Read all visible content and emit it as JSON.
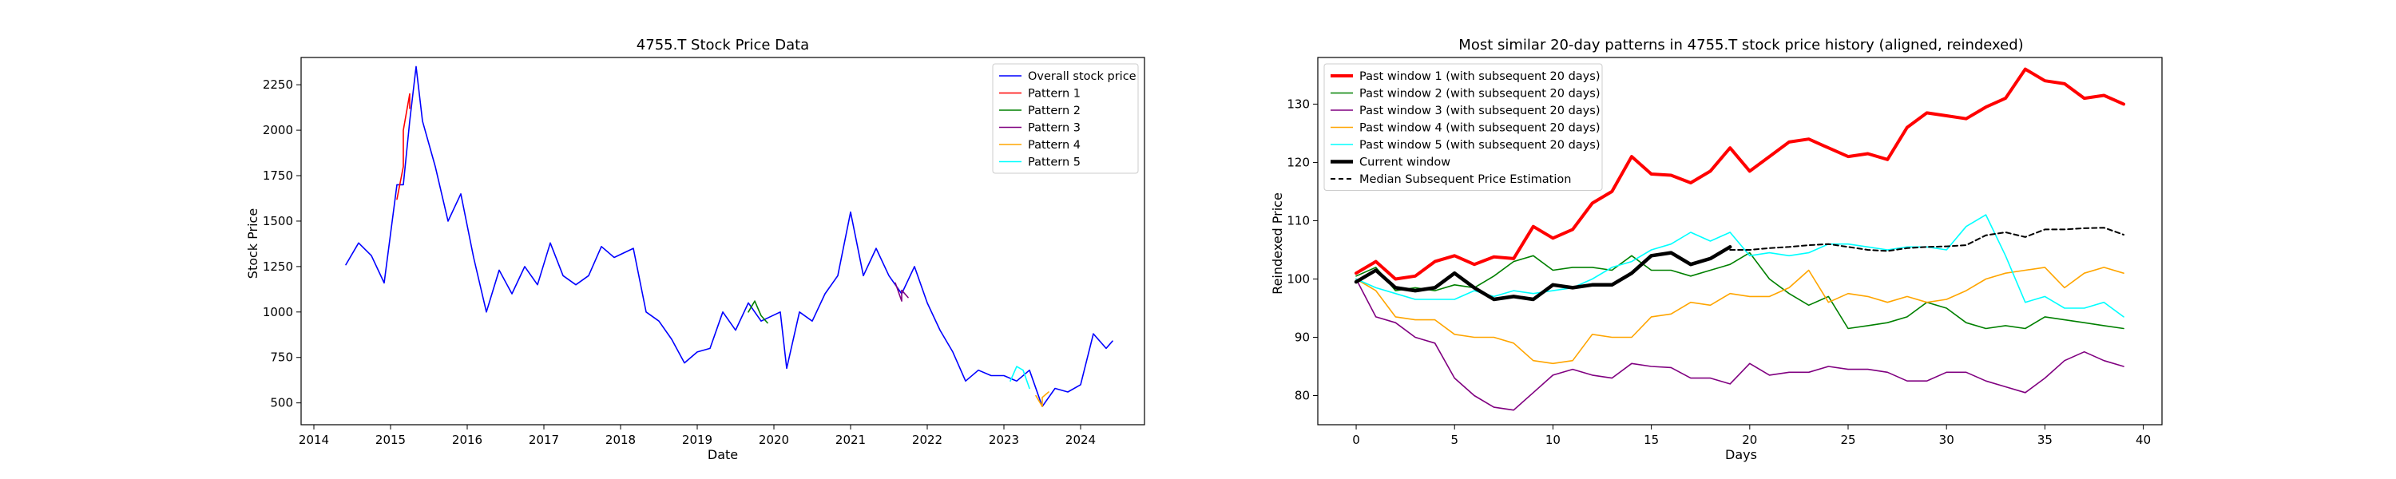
{
  "chart_data": [
    {
      "type": "line",
      "title": "4755.T Stock Price Data",
      "xlabel": "Date",
      "ylabel": "Stock Price",
      "x_ticks": [
        "2014",
        "2015",
        "2016",
        "2017",
        "2018",
        "2019",
        "2020",
        "2021",
        "2022",
        "2023",
        "2024"
      ],
      "y_ticks": [
        "500",
        "750",
        "1000",
        "1250",
        "1500",
        "1750",
        "2000",
        "2250"
      ],
      "xlim": [
        "2013-11",
        "2024-11"
      ],
      "ylim": [
        380,
        2400
      ],
      "grid": false,
      "legend_position": "top-right",
      "series": [
        {
          "name": "Overall stock price",
          "color": "#0000ff",
          "points": [
            [
              "2014-06",
              1260
            ],
            [
              "2014-08",
              1380
            ],
            [
              "2014-10",
              1310
            ],
            [
              "2014-12",
              1160
            ],
            [
              "2015-02",
              1700
            ],
            [
              "2015-03",
              1700
            ],
            [
              "2015-04",
              2050
            ],
            [
              "2015-05",
              2350
            ],
            [
              "2015-06",
              2050
            ],
            [
              "2015-08",
              1800
            ],
            [
              "2015-10",
              1500
            ],
            [
              "2015-12",
              1650
            ],
            [
              "2016-02",
              1300
            ],
            [
              "2016-04",
              1000
            ],
            [
              "2016-06",
              1230
            ],
            [
              "2016-08",
              1100
            ],
            [
              "2016-10",
              1250
            ],
            [
              "2016-12",
              1150
            ],
            [
              "2017-02",
              1380
            ],
            [
              "2017-04",
              1200
            ],
            [
              "2017-06",
              1150
            ],
            [
              "2017-08",
              1200
            ],
            [
              "2017-10",
              1360
            ],
            [
              "2017-12",
              1300
            ],
            [
              "2018-03",
              1350
            ],
            [
              "2018-05",
              1000
            ],
            [
              "2018-07",
              950
            ],
            [
              "2018-09",
              850
            ],
            [
              "2018-11",
              720
            ],
            [
              "2019-01",
              780
            ],
            [
              "2019-03",
              800
            ],
            [
              "2019-05",
              1000
            ],
            [
              "2019-07",
              900
            ],
            [
              "2019-09",
              1050
            ],
            [
              "2019-11",
              950
            ],
            [
              "2020-02",
              1000
            ],
            [
              "2020-03",
              690
            ],
            [
              "2020-05",
              1000
            ],
            [
              "2020-07",
              950
            ],
            [
              "2020-09",
              1100
            ],
            [
              "2020-11",
              1200
            ],
            [
              "2021-01",
              1550
            ],
            [
              "2021-03",
              1200
            ],
            [
              "2021-05",
              1350
            ],
            [
              "2021-07",
              1200
            ],
            [
              "2021-09",
              1100
            ],
            [
              "2021-11",
              1250
            ],
            [
              "2022-01",
              1050
            ],
            [
              "2022-03",
              900
            ],
            [
              "2022-05",
              780
            ],
            [
              "2022-07",
              620
            ],
            [
              "2022-09",
              680
            ],
            [
              "2022-11",
              650
            ],
            [
              "2023-01",
              650
            ],
            [
              "2023-03",
              620
            ],
            [
              "2023-05",
              680
            ],
            [
              "2023-07",
              480
            ],
            [
              "2023-09",
              580
            ],
            [
              "2023-11",
              560
            ],
            [
              "2024-01",
              600
            ],
            [
              "2024-03",
              880
            ],
            [
              "2024-05",
              800
            ],
            [
              "2024-06",
              840
            ]
          ]
        },
        {
          "name": "Pattern 1",
          "color": "#ff0000",
          "points": [
            [
              "2015-02",
              1620
            ],
            [
              "2015-03",
              1800
            ],
            [
              "2015-03",
              2000
            ],
            [
              "2015-04",
              2200
            ],
            [
              "2015-04",
              2120
            ]
          ]
        },
        {
          "name": "Pattern 2",
          "color": "#008000",
          "points": [
            [
              "2019-09",
              1000
            ],
            [
              "2019-10",
              1060
            ],
            [
              "2019-11",
              980
            ],
            [
              "2019-12",
              940
            ]
          ]
        },
        {
          "name": "Pattern 3",
          "color": "#800080",
          "points": [
            [
              "2021-08",
              1160
            ],
            [
              "2021-09",
              1060
            ],
            [
              "2021-09",
              1120
            ],
            [
              "2021-10",
              1080
            ]
          ]
        },
        {
          "name": "Pattern 4",
          "color": "#ffa500",
          "points": [
            [
              "2023-06",
              540
            ],
            [
              "2023-07",
              480
            ],
            [
              "2023-07",
              530
            ],
            [
              "2023-08",
              560
            ]
          ]
        },
        {
          "name": "Pattern 5",
          "color": "#00ffff",
          "points": [
            [
              "2023-02",
              620
            ],
            [
              "2023-03",
              700
            ],
            [
              "2023-04",
              680
            ],
            [
              "2023-05",
              580
            ]
          ]
        }
      ]
    },
    {
      "type": "line",
      "title": "Most similar 20-day patterns in 4755.T stock price history (aligned, reindexed)",
      "xlabel": "Days",
      "ylabel": "Reindexed Price",
      "x_ticks": [
        "0",
        "5",
        "10",
        "15",
        "20",
        "25",
        "30",
        "35",
        "40"
      ],
      "y_ticks": [
        "80",
        "90",
        "100",
        "110",
        "120",
        "130"
      ],
      "xlim": [
        -1.95,
        40.95
      ],
      "ylim": [
        75,
        138
      ],
      "grid": false,
      "legend_position": "top-left",
      "series": [
        {
          "name": "Past window 1 (with subsequent 20 days)",
          "color": "#ff0000",
          "values": [
            101,
            103,
            100,
            100.5,
            103,
            104,
            102.5,
            103.8,
            103.5,
            109,
            107,
            108.5,
            113,
            115,
            121,
            118,
            117.8,
            116.5,
            118.5,
            122.5,
            118.5,
            121,
            123.5,
            124,
            122.5,
            121,
            121.5,
            120.5,
            126,
            128.5,
            128,
            127.5,
            129.5,
            131,
            136,
            134,
            133.5,
            131,
            131.5,
            130
          ]
        },
        {
          "name": "Past window 2 (with subsequent 20 days)",
          "color": "#008000",
          "values": [
            100.5,
            102,
            98,
            98.5,
            98,
            99,
            98.5,
            100.5,
            103,
            104,
            101.5,
            102,
            102,
            101.5,
            104,
            101.5,
            101.5,
            100.5,
            101.5,
            102.5,
            104.5,
            100,
            97.5,
            95.5,
            97,
            91.5,
            92,
            92.5,
            93.5,
            96,
            95,
            92.5,
            91.5,
            92,
            91.5,
            93.5,
            93,
            92.5,
            92,
            91.5
          ]
        },
        {
          "name": "Past window 3 (with subsequent 20 days)",
          "color": "#800080",
          "values": [
            100,
            93.5,
            92.5,
            90,
            89,
            83,
            80,
            78,
            77.5,
            80.5,
            83.5,
            84.5,
            83.5,
            83,
            85.5,
            85,
            84.8,
            83,
            83,
            82,
            85.5,
            83.5,
            84,
            84,
            85,
            84.5,
            84.5,
            84,
            82.5,
            82.5,
            84,
            84,
            82.5,
            81.5,
            80.5,
            83,
            86,
            87.5,
            86,
            85
          ]
        },
        {
          "name": "Past window 4 (with subsequent 20 days)",
          "color": "#ffa500",
          "values": [
            100,
            98,
            93.5,
            93,
            93,
            90.5,
            90,
            90,
            89,
            86,
            85.5,
            86,
            90.5,
            90,
            90,
            93.5,
            94,
            96,
            95.5,
            97.5,
            97,
            97,
            98.5,
            101.5,
            96,
            97.5,
            97,
            96,
            97,
            96,
            96.5,
            98,
            100,
            101,
            101.5,
            102,
            98.5,
            101,
            102,
            101
          ]
        },
        {
          "name": "Past window 5 (with subsequent 20 days)",
          "color": "#00ffff",
          "values": [
            100,
            98.5,
            97.5,
            96.5,
            96.5,
            96.5,
            98,
            97,
            98,
            97.5,
            98,
            98.5,
            100,
            102,
            103,
            105,
            106,
            108,
            106.5,
            108,
            104,
            104.5,
            104,
            104.5,
            106,
            106,
            105.5,
            105,
            105.5,
            105.5,
            105,
            109,
            111,
            104,
            96,
            97,
            95,
            95,
            96,
            93.5
          ]
        },
        {
          "name": "Current window",
          "color": "#000000",
          "values": [
            99.5,
            101.5,
            98.5,
            98,
            98.5,
            101,
            98.5,
            96.5,
            97,
            96.5,
            99,
            98.5,
            99,
            99,
            101,
            104,
            104.5,
            102.5,
            103.5,
            105.5
          ]
        },
        {
          "name": "Median Subsequent Price Estimation",
          "color": "#000000",
          "dashed": true,
          "x": [
            19,
            20,
            21,
            22,
            23,
            24,
            25,
            26,
            27,
            28,
            29,
            30,
            31,
            32,
            33,
            34,
            35,
            36,
            37,
            38,
            39
          ],
          "values": [
            105,
            105,
            105.3,
            105.5,
            105.8,
            106,
            105.5,
            105,
            104.8,
            105.3,
            105.5,
            105.6,
            105.8,
            107.5,
            108,
            107.2,
            108.5,
            108.5,
            108.7,
            108.8,
            107.6
          ]
        }
      ]
    }
  ]
}
